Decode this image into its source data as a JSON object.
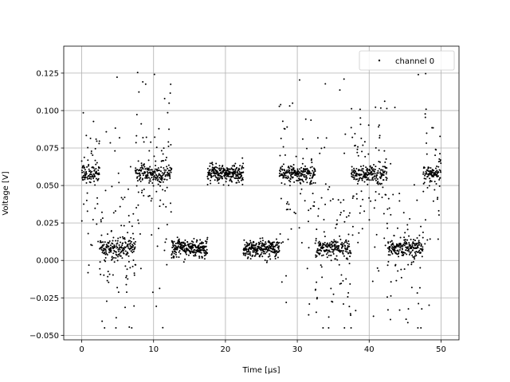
{
  "chart_data": {
    "type": "scatter",
    "title": "",
    "xlabel": "Time [μs]",
    "ylabel": "Voltage [V]",
    "xlim": [
      -2.5,
      52.5
    ],
    "ylim": [
      -0.053,
      0.143
    ],
    "xticks": [
      0,
      10,
      20,
      30,
      40,
      50
    ],
    "xtick_labels": [
      "0",
      "10",
      "20",
      "30",
      "40",
      "50"
    ],
    "yticks": [
      -0.05,
      -0.025,
      0.0,
      0.025,
      0.05,
      0.075,
      0.1,
      0.125
    ],
    "ytick_labels": [
      "−0.050",
      "−0.025",
      "0.000",
      "0.025",
      "0.050",
      "0.075",
      "0.100",
      "0.125"
    ],
    "grid": true,
    "legend": {
      "position": "top-right"
    },
    "series": [
      {
        "name": "channel 0",
        "color": "#000000",
        "marker": "dot",
        "levels_v": [
          0.058,
          0.008
        ],
        "segments": [
          {
            "x_range": [
              0.0,
              2.5
            ],
            "level": 0.058
          },
          {
            "x_range": [
              2.5,
              7.5
            ],
            "level": 0.008
          },
          {
            "x_range": [
              7.5,
              12.5
            ],
            "level": 0.058
          },
          {
            "x_range": [
              12.5,
              17.5
            ],
            "level": 0.008
          },
          {
            "x_range": [
              17.5,
              22.5
            ],
            "level": 0.058
          },
          {
            "x_range": [
              22.5,
              27.5
            ],
            "level": 0.008
          },
          {
            "x_range": [
              27.5,
              32.5
            ],
            "level": 0.058
          },
          {
            "x_range": [
              32.5,
              37.5
            ],
            "level": 0.008
          },
          {
            "x_range": [
              37.5,
              42.5
            ],
            "level": 0.058
          },
          {
            "x_range": [
              42.5,
              47.5
            ],
            "level": 0.008
          },
          {
            "x_range": [
              47.5,
              50.0
            ],
            "level": 0.058
          }
        ],
        "noisy_segment_indices": [
          0,
          1,
          2,
          6,
          7,
          8,
          9,
          10
        ],
        "quiet_noise_v": 0.003,
        "noisy_spread_v": [
          -0.045,
          0.128
        ]
      }
    ]
  }
}
